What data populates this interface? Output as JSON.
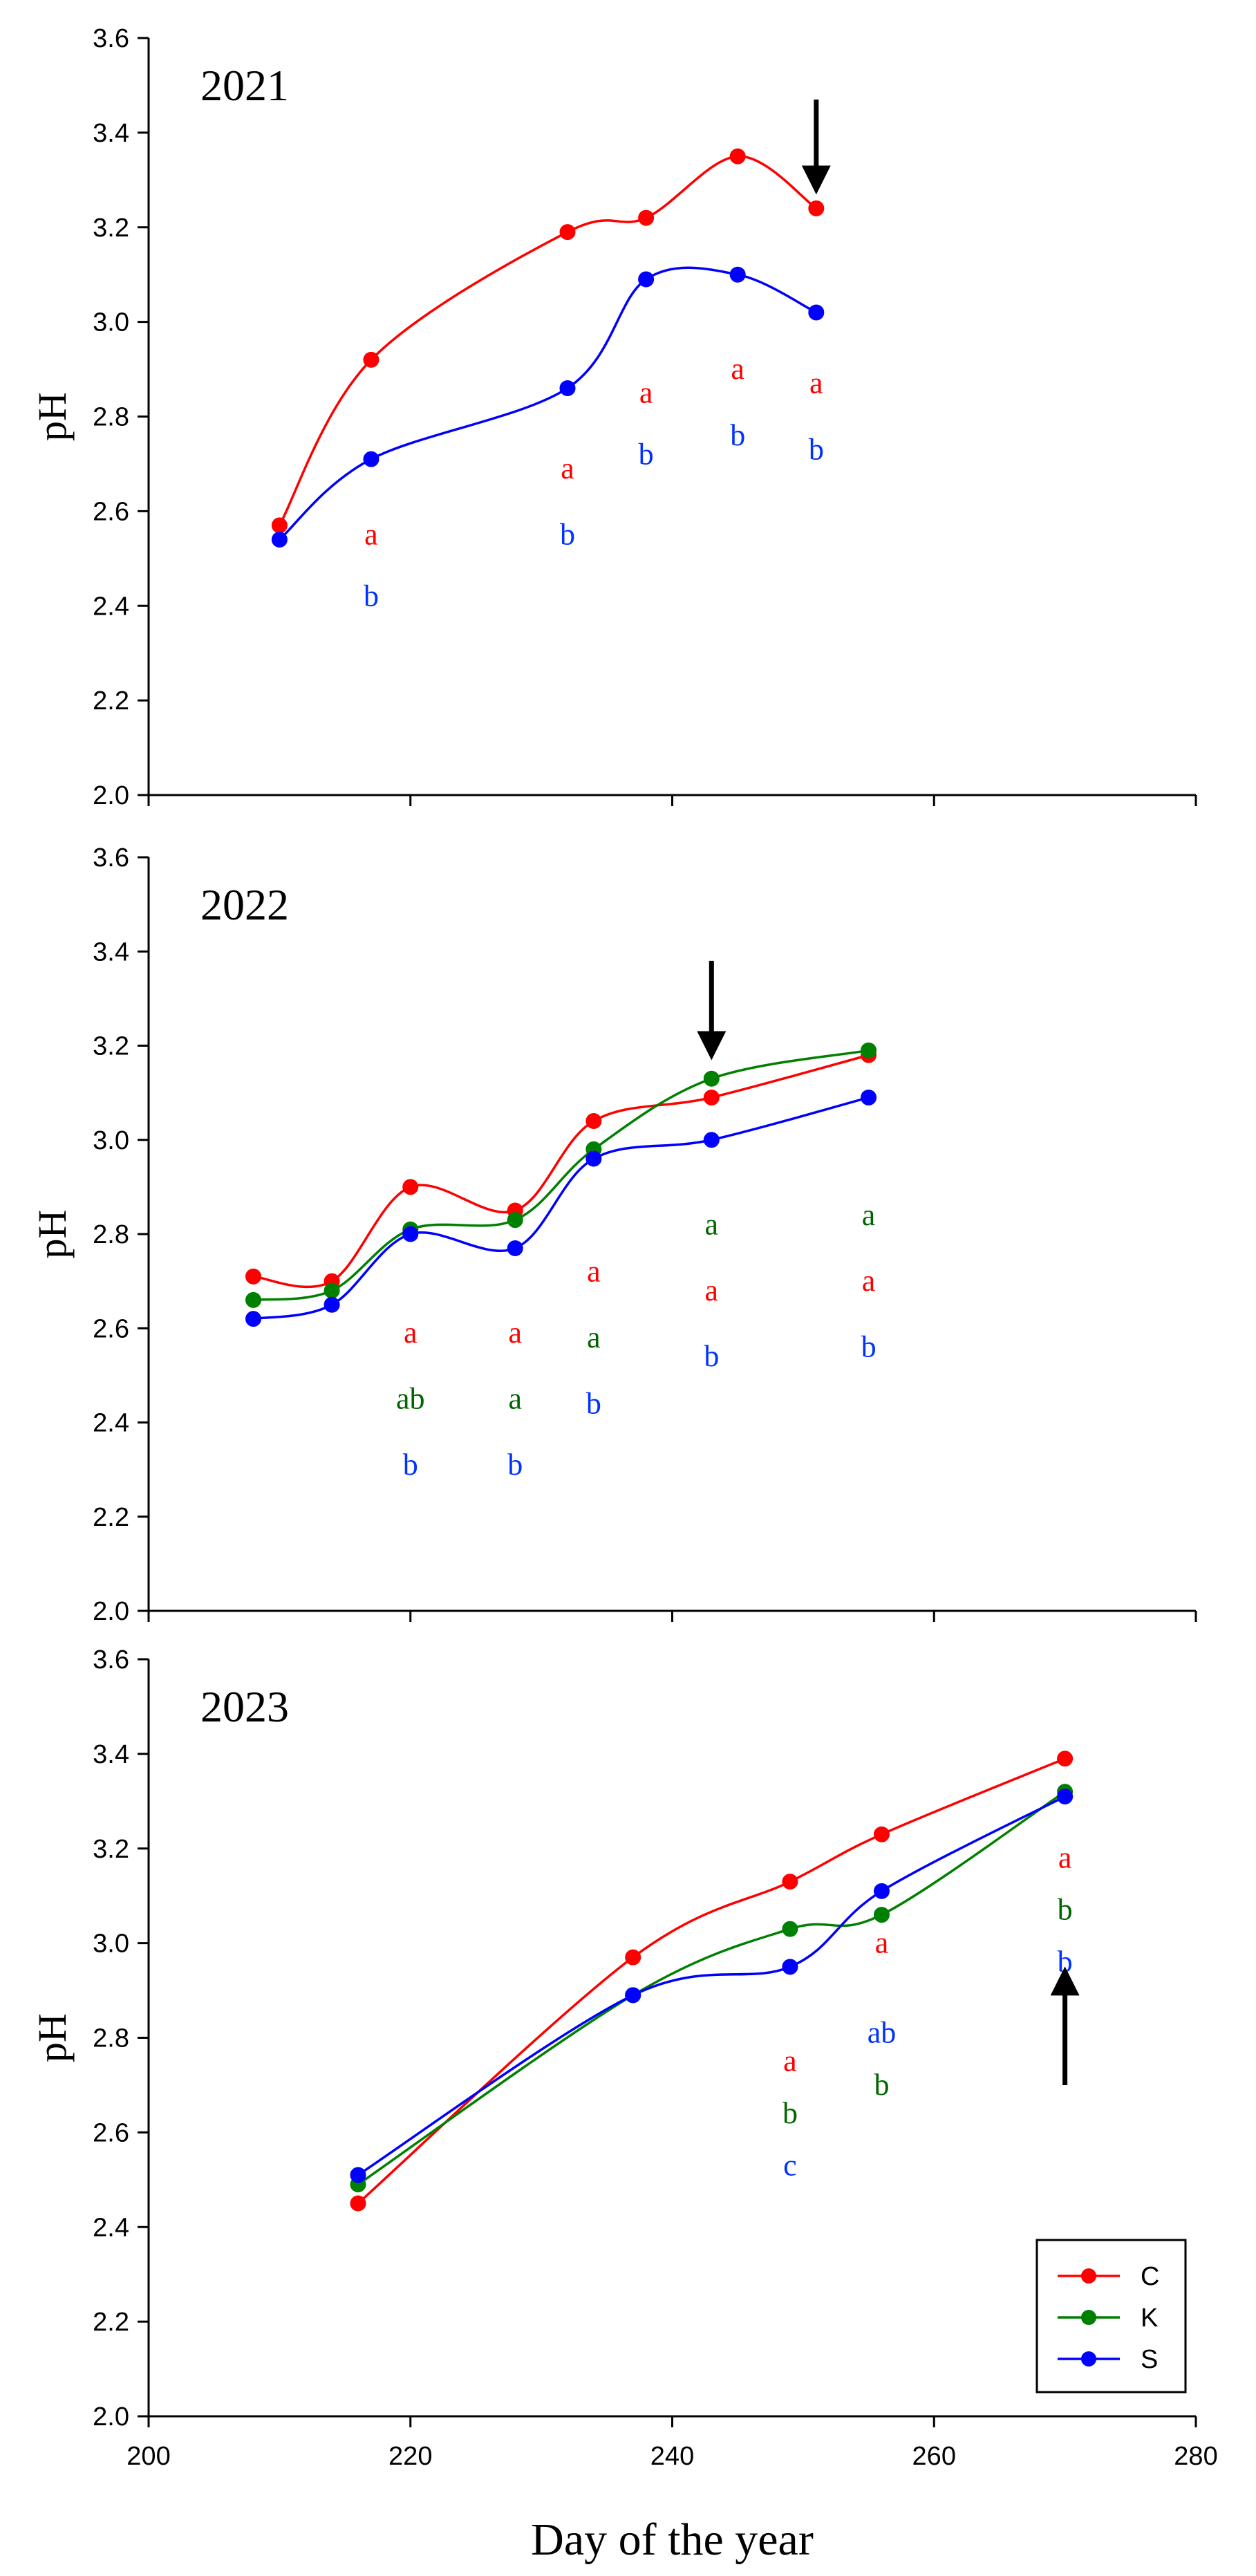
{
  "chart_data": [
    {
      "type": "line",
      "title": "2021",
      "ylabel": "pH",
      "xlabel": "",
      "xlim": [
        200,
        280
      ],
      "ylim": [
        2.0,
        3.6
      ],
      "yticks": [
        "2.0",
        "2.2",
        "2.4",
        "2.6",
        "2.8",
        "3.0",
        "3.2",
        "3.4",
        "3.6"
      ],
      "xticks": [],
      "arrow": {
        "x": 251,
        "y_from": 3.47,
        "y_to": 3.3,
        "direction": "down"
      },
      "series": [
        {
          "key": "C",
          "color": "#ff0000",
          "x": [
            210,
            217,
            232,
            238,
            245,
            251
          ],
          "values": [
            2.57,
            2.92,
            3.19,
            3.22,
            3.35,
            3.24
          ]
        },
        {
          "key": "S",
          "color": "#0000ff",
          "x": [
            210,
            217,
            232,
            238,
            245,
            251
          ],
          "values": [
            2.54,
            2.71,
            2.86,
            3.09,
            3.1,
            3.02
          ]
        }
      ],
      "annotations": [
        {
          "x": 217,
          "y": 2.55,
          "text": "a",
          "color": "#ff0000"
        },
        {
          "x": 217,
          "y": 2.42,
          "text": "b",
          "color": "#0033ff"
        },
        {
          "x": 232,
          "y": 2.69,
          "text": "a",
          "color": "#ff0000"
        },
        {
          "x": 232,
          "y": 2.55,
          "text": "b",
          "color": "#0033ff"
        },
        {
          "x": 238,
          "y": 2.85,
          "text": "a",
          "color": "#ff0000"
        },
        {
          "x": 238,
          "y": 2.72,
          "text": "b",
          "color": "#0033ff"
        },
        {
          "x": 245,
          "y": 2.9,
          "text": "a",
          "color": "#ff0000"
        },
        {
          "x": 245,
          "y": 2.76,
          "text": "b",
          "color": "#0033ff"
        },
        {
          "x": 251,
          "y": 2.87,
          "text": "a",
          "color": "#ff0000"
        },
        {
          "x": 251,
          "y": 2.73,
          "text": "b",
          "color": "#0033ff"
        }
      ]
    },
    {
      "type": "line",
      "title": "2022",
      "ylabel": "pH",
      "xlabel": "",
      "xlim": [
        200,
        280
      ],
      "ylim": [
        2.0,
        3.6
      ],
      "yticks": [
        "2.0",
        "2.2",
        "2.4",
        "2.6",
        "2.8",
        "3.0",
        "3.2",
        "3.4",
        "3.6"
      ],
      "xticks": [],
      "arrow": {
        "x": 243,
        "y_from": 3.38,
        "y_to": 3.2,
        "direction": "down"
      },
      "series": [
        {
          "key": "C",
          "color": "#ff0000",
          "x": [
            208,
            214,
            220,
            228,
            234,
            243,
            255
          ],
          "values": [
            2.71,
            2.7,
            2.9,
            2.85,
            3.04,
            3.09,
            3.18
          ]
        },
        {
          "key": "K",
          "color": "#008000",
          "x": [
            208,
            214,
            220,
            228,
            234,
            243,
            255
          ],
          "values": [
            2.66,
            2.68,
            2.81,
            2.83,
            2.98,
            3.13,
            3.19
          ]
        },
        {
          "key": "S",
          "color": "#0000ff",
          "x": [
            208,
            214,
            220,
            228,
            234,
            243,
            255
          ],
          "values": [
            2.62,
            2.65,
            2.8,
            2.77,
            2.96,
            3.0,
            3.09
          ]
        }
      ],
      "annotations": [
        {
          "x": 220,
          "y": 2.59,
          "text": "a",
          "color": "#ff0000"
        },
        {
          "x": 220,
          "y": 2.45,
          "text": "ab",
          "color": "#006600"
        },
        {
          "x": 220,
          "y": 2.31,
          "text": "b",
          "color": "#0033ff"
        },
        {
          "x": 228,
          "y": 2.59,
          "text": "a",
          "color": "#ff0000"
        },
        {
          "x": 228,
          "y": 2.45,
          "text": "a",
          "color": "#006600"
        },
        {
          "x": 228,
          "y": 2.31,
          "text": "b",
          "color": "#0033ff"
        },
        {
          "x": 234,
          "y": 2.72,
          "text": "a",
          "color": "#ff0000"
        },
        {
          "x": 234,
          "y": 2.58,
          "text": "a",
          "color": "#006600"
        },
        {
          "x": 234,
          "y": 2.44,
          "text": "b",
          "color": "#0033ff"
        },
        {
          "x": 243,
          "y": 2.82,
          "text": "a",
          "color": "#006600"
        },
        {
          "x": 243,
          "y": 2.68,
          "text": "a",
          "color": "#ff0000"
        },
        {
          "x": 243,
          "y": 2.54,
          "text": "b",
          "color": "#0033ff"
        },
        {
          "x": 255,
          "y": 2.84,
          "text": "a",
          "color": "#006600"
        },
        {
          "x": 255,
          "y": 2.7,
          "text": "a",
          "color": "#ff0000"
        },
        {
          "x": 255,
          "y": 2.56,
          "text": "b",
          "color": "#0033ff"
        }
      ]
    },
    {
      "type": "line",
      "title": "2023",
      "ylabel": "pH",
      "xlabel": "Day of the year",
      "xlim": [
        200,
        280
      ],
      "ylim": [
        2.0,
        3.6
      ],
      "yticks": [
        "2.0",
        "2.2",
        "2.4",
        "2.6",
        "2.8",
        "3.0",
        "3.2",
        "3.4",
        "3.6"
      ],
      "xticks": [
        "200",
        "220",
        "240",
        "260",
        "280"
      ],
      "arrow": {
        "x": 270,
        "y_from": 2.7,
        "y_to": 2.92,
        "direction": "up"
      },
      "legend": {
        "position": "bottom-right",
        "entries": [
          {
            "key": "C",
            "label": "C",
            "color": "#ff0000"
          },
          {
            "key": "K",
            "label": "K",
            "color": "#008000"
          },
          {
            "key": "S",
            "label": "S",
            "color": "#0000ff"
          }
        ]
      },
      "series": [
        {
          "key": "C",
          "color": "#ff0000",
          "x": [
            216,
            237,
            249,
            256,
            270
          ],
          "values": [
            2.45,
            2.97,
            3.13,
            3.23,
            3.39
          ]
        },
        {
          "key": "K",
          "color": "#008000",
          "x": [
            216,
            237,
            249,
            256,
            270
          ],
          "values": [
            2.49,
            2.89,
            3.03,
            3.06,
            3.32
          ]
        },
        {
          "key": "S",
          "color": "#0000ff",
          "x": [
            216,
            237,
            249,
            256,
            270
          ],
          "values": [
            2.51,
            2.89,
            2.95,
            3.11,
            3.31
          ]
        }
      ],
      "annotations": [
        {
          "x": 249,
          "y": 2.75,
          "text": "a",
          "color": "#ff0000"
        },
        {
          "x": 249,
          "y": 2.64,
          "text": "b",
          "color": "#006600"
        },
        {
          "x": 249,
          "y": 2.53,
          "text": "c",
          "color": "#0033ff"
        },
        {
          "x": 256,
          "y": 3.0,
          "text": "a",
          "color": "#ff0000"
        },
        {
          "x": 256,
          "y": 2.81,
          "text": "ab",
          "color": "#0033ff"
        },
        {
          "x": 256,
          "y": 2.7,
          "text": "b",
          "color": "#006600"
        },
        {
          "x": 270,
          "y": 3.18,
          "text": "a",
          "color": "#ff0000"
        },
        {
          "x": 270,
          "y": 3.07,
          "text": "b",
          "color": "#006600"
        },
        {
          "x": 270,
          "y": 2.96,
          "text": "b",
          "color": "#0033ff"
        }
      ]
    }
  ]
}
